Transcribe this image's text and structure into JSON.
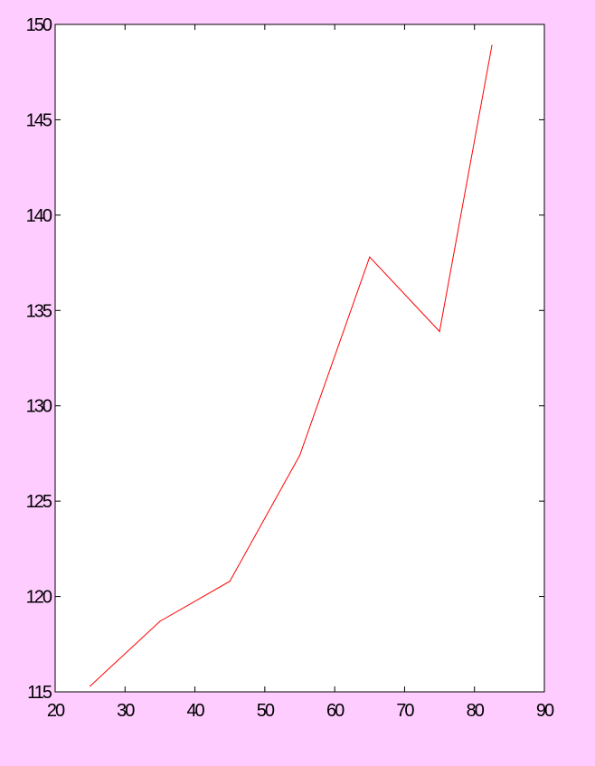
{
  "chart_data": {
    "type": "line",
    "title": "",
    "xlabel": "",
    "ylabel": "",
    "xlim": [
      20,
      90
    ],
    "ylim": [
      115,
      150
    ],
    "xticks": [
      20,
      30,
      40,
      50,
      60,
      70,
      80,
      90
    ],
    "yticks": [
      115,
      120,
      125,
      130,
      135,
      140,
      145,
      150
    ],
    "xtick_labels": [
      "20",
      "30",
      "40",
      "50",
      "60",
      "70",
      "80",
      "90"
    ],
    "ytick_labels": [
      "115",
      "120",
      "125",
      "130",
      "135",
      "140",
      "145",
      "150"
    ],
    "grid": false,
    "series": [
      {
        "color": "#ff0000",
        "x": [
          25,
          35,
          45,
          55,
          65,
          75,
          82.5
        ],
        "y": [
          115.3,
          118.7,
          120.8,
          127.4,
          137.8,
          133.9,
          148.9
        ]
      }
    ]
  },
  "colors": {
    "page_background": "#ffccff",
    "plot_background": "#ffffff",
    "axes": "#000000",
    "line": "#ff0000"
  }
}
